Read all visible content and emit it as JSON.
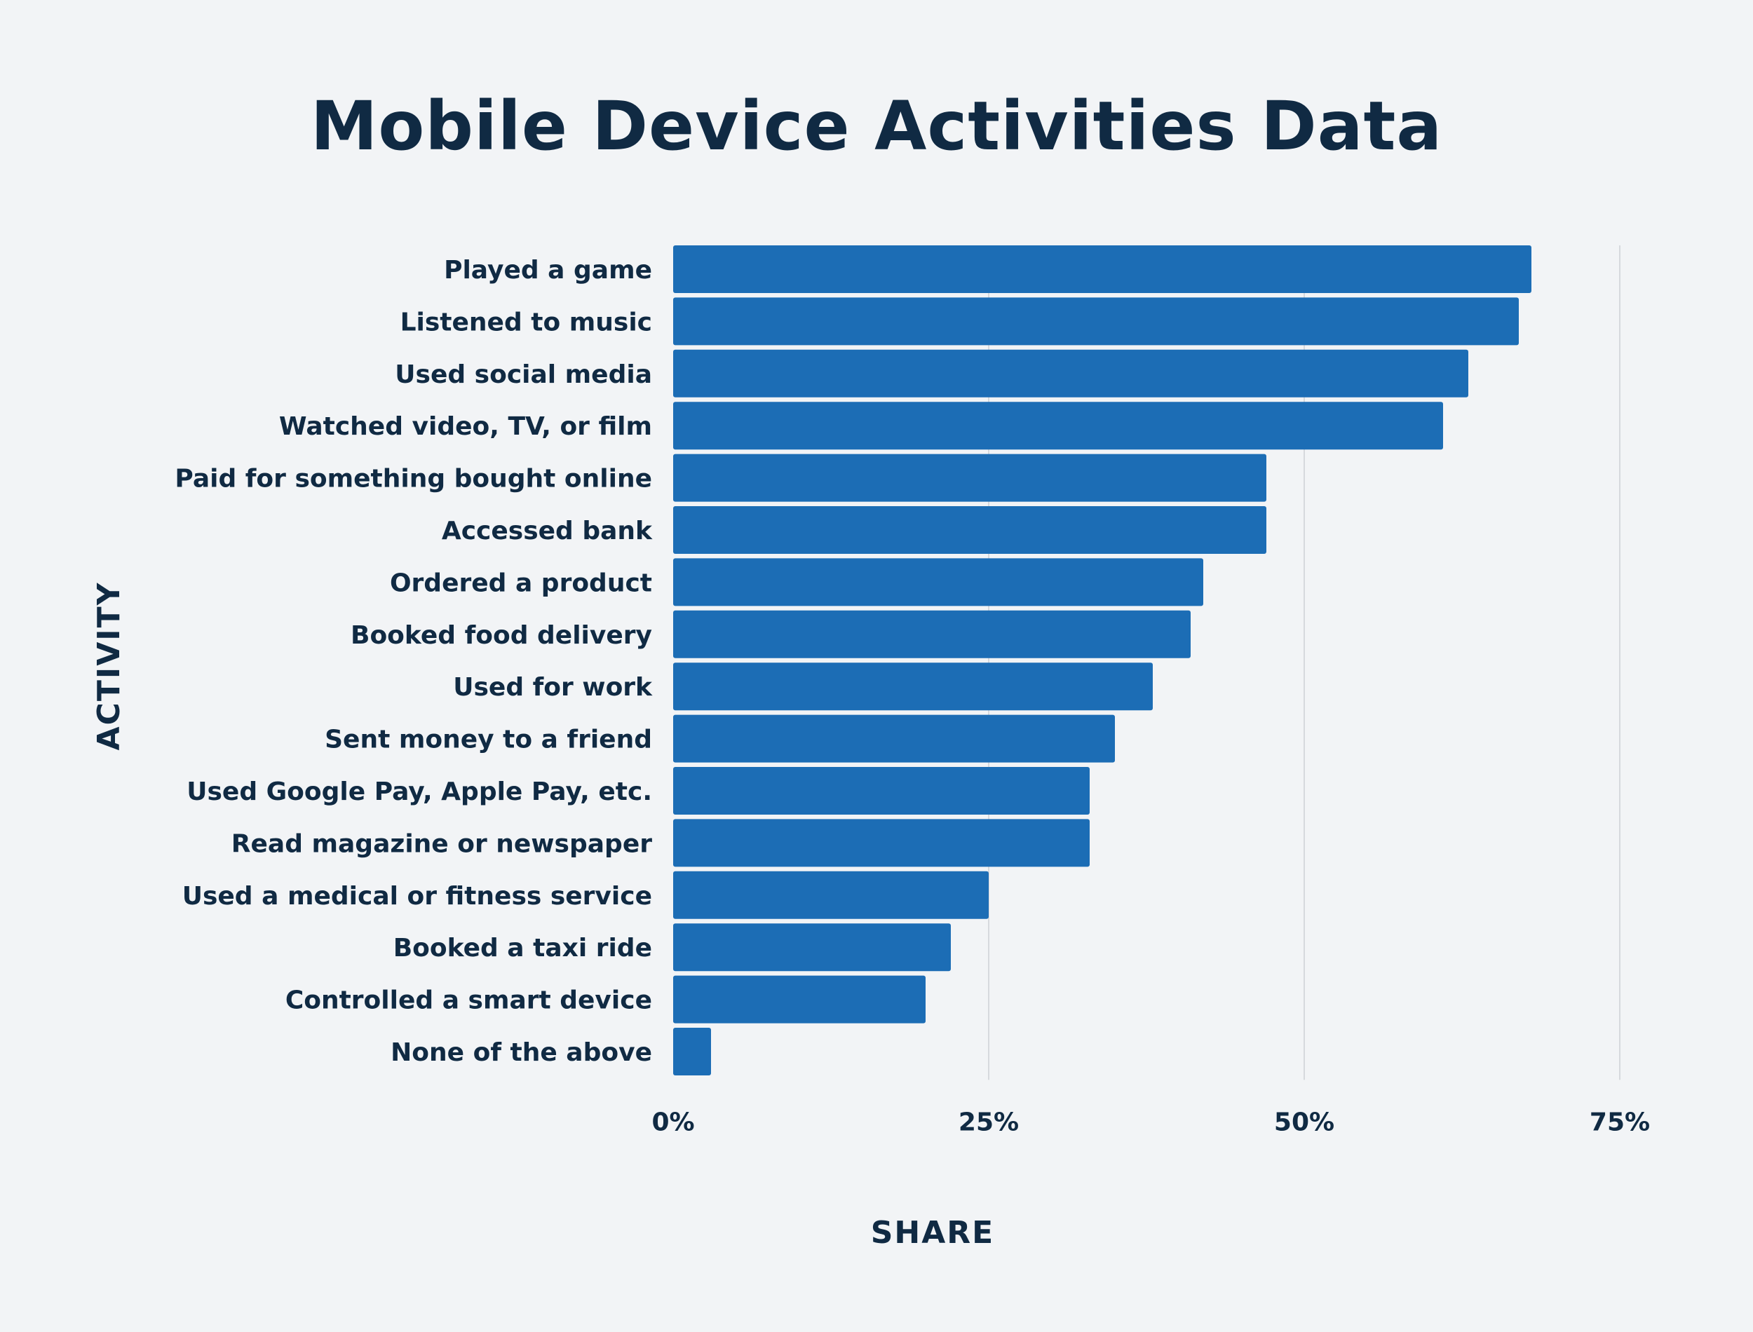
{
  "chart_data": {
    "type": "bar",
    "orientation": "horizontal",
    "title": "Mobile Device Activities Data",
    "xlabel": "SHARE",
    "ylabel": "ACTIVITY",
    "xlim": [
      0,
      75
    ],
    "grid": true,
    "bar_color": "#1c6db5",
    "text_color": "#102a43",
    "background_color": "#f2f4f6",
    "ticks": [
      {
        "value": 0,
        "label": "0%"
      },
      {
        "value": 25,
        "label": "25%"
      },
      {
        "value": 50,
        "label": "50%"
      },
      {
        "value": 75,
        "label": "75%"
      }
    ],
    "categories": [
      "Played a game",
      "Listened to music",
      "Used social media",
      "Watched video, TV, or film",
      "Paid for something bought online",
      "Accessed bank",
      "Ordered a product",
      "Booked food delivery",
      "Used for work",
      "Sent money to a friend",
      "Used Google Pay, Apple Pay, etc.",
      "Read magazine or newspaper",
      "Used a medical or fitness service",
      "Booked a taxi ride",
      "Controlled a smart device",
      "None of the above"
    ],
    "values": [
      68,
      67,
      63,
      61,
      47,
      47,
      42,
      41,
      38,
      35,
      33,
      33,
      25,
      22,
      20,
      3
    ]
  }
}
